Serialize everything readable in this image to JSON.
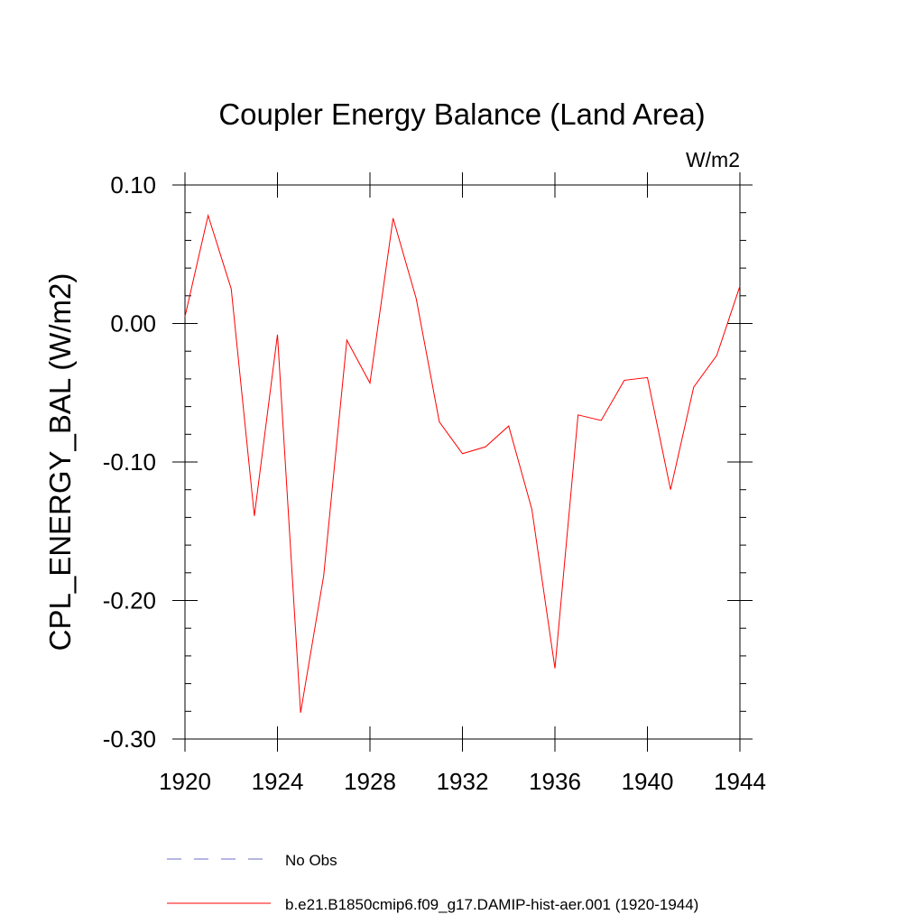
{
  "chart_data": {
    "type": "line",
    "title": "Coupler Energy Balance (Land Area)",
    "units_label": "W/m2",
    "ylabel": "CPL_ENERGY_BAL  (W/m2)",
    "xlabel": "",
    "xlim": [
      1920,
      1944
    ],
    "ylim": [
      -0.3,
      0.1
    ],
    "x_ticks": [
      "1920",
      "1924",
      "1928",
      "1932",
      "1936",
      "1940",
      "1944"
    ],
    "y_ticks": [
      "0.10",
      "0.00",
      "-0.10",
      "-0.20",
      "-0.30"
    ],
    "grid": false,
    "legend_position": "bottom-left",
    "series": [
      {
        "name": "b.e21.B1850cmip6.f09_g17.DAMIP-hist-aer.001 (1920-1944)",
        "color": "#ff0000",
        "dash": "solid",
        "x": [
          1920,
          1921,
          1922,
          1923,
          1924,
          1925,
          1926,
          1927,
          1928,
          1929,
          1930,
          1931,
          1932,
          1933,
          1934,
          1935,
          1936,
          1937,
          1938,
          1939,
          1940,
          1941,
          1942,
          1943,
          1944
        ],
        "y": [
          0.005,
          0.078,
          0.025,
          -0.139,
          -0.008,
          -0.281,
          -0.182,
          -0.012,
          -0.043,
          0.076,
          0.018,
          -0.071,
          -0.094,
          -0.089,
          -0.074,
          -0.134,
          -0.249,
          -0.066,
          -0.07,
          -0.041,
          -0.039,
          -0.12,
          -0.046,
          -0.023,
          0.027
        ]
      }
    ],
    "legend": [
      {
        "label": "No Obs",
        "color": "#6c6cc8",
        "dash": "dashed"
      },
      {
        "label": "b.e21.B1850cmip6.f09_g17.DAMIP-hist-aer.001 (1920-1944)",
        "color": "#ff0000",
        "dash": "solid"
      }
    ]
  }
}
